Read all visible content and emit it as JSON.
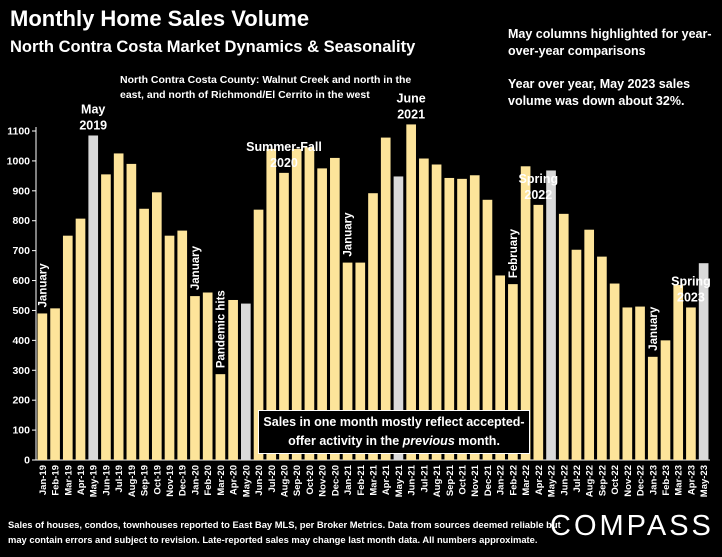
{
  "header": {
    "title": "Monthly Home Sales Volume",
    "subtitle": "North Contra Costa Market Dynamics & Seasonality",
    "region_note": "North Contra Costa County: Walnut Creek and north in the east, and north of Richmond/El Cerrito in the west",
    "highlight_note": "May columns highlighted for year-over-year comparisons",
    "yoy_note": "Year over year, May 2023 sales volume was down about 32%."
  },
  "callout": {
    "line1": "Sales in one month mostly reflect accepted-",
    "line2a": "offer activity in the ",
    "line2b": "previous",
    "line2c": " month."
  },
  "footer": {
    "text": "Sales of houses, condos, townhouses reported to East Bay MLS, per Broker Metrics. Data from sources deemed reliable but may contain errors and subject to revision. Late-reported sales may change last month data. All numbers approximate.",
    "logo": "COMPASS"
  },
  "colors": {
    "bar": "#fde49a",
    "may_bar": "#d9d9d9",
    "background": "#000000",
    "text": "#ffffff"
  },
  "chart_data": {
    "type": "bar",
    "title": "Monthly Home Sales Volume",
    "ylim": [
      0,
      1100
    ],
    "yticks": [
      0,
      100,
      200,
      300,
      400,
      500,
      600,
      700,
      800,
      900,
      1000,
      1100
    ],
    "grid": false,
    "categories": [
      "Jan-19",
      "Feb-19",
      "Mar-19",
      "Apr-19",
      "May-19",
      "Jun-19",
      "Jul-19",
      "Aug-19",
      "Sep-19",
      "Oct-19",
      "Nov-19",
      "Dec-19",
      "Jan-20",
      "Feb-20",
      "Mar-20",
      "Apr-20",
      "May-20",
      "Jun-20",
      "Jul-20",
      "Aug-20",
      "Sep-20",
      "Oct-20",
      "Nov-20",
      "Dec-20",
      "Jan-21",
      "Feb-21",
      "Mar-21",
      "Apr-21",
      "May-21",
      "Jun-21",
      "Jul-21",
      "Aug-21",
      "Sep-21",
      "Oct-21",
      "Nov-21",
      "Dec-21",
      "Jan-22",
      "Feb-22",
      "Mar-22",
      "Apr-22",
      "May-22",
      "Jun-22",
      "Jul-22",
      "Aug-22",
      "Sep-22",
      "Oct-22",
      "Nov-22",
      "Dec-22",
      "Jan-23",
      "Feb-23",
      "Mar-23",
      "Apr-23",
      "May-23"
    ],
    "values": [
      490,
      507,
      750,
      807,
      1085,
      955,
      1025,
      990,
      840,
      895,
      750,
      767,
      548,
      560,
      287,
      535,
      523,
      837,
      1040,
      960,
      1040,
      1045,
      975,
      1010,
      660,
      660,
      892,
      1078,
      948,
      1122,
      1008,
      988,
      943,
      940,
      952,
      870,
      617,
      588,
      982,
      853,
      968,
      823,
      703,
      770,
      680,
      590,
      510,
      513,
      345,
      400,
      585,
      510,
      658
    ],
    "highlighted": [
      "May-19",
      "May-20",
      "May-21",
      "May-22",
      "May-23"
    ],
    "annotations": [
      {
        "at": "Jan-19",
        "text": "January",
        "rotated": true
      },
      {
        "at": "May-19",
        "text": "May 2019",
        "lines": [
          "May",
          "2019"
        ]
      },
      {
        "at": "Jan-20",
        "text": "January",
        "rotated": true
      },
      {
        "at": "Mar-20",
        "text": "Pandemic hits",
        "rotated": true
      },
      {
        "at": "Aug-20",
        "text": "Summer-Fall 2020",
        "lines": [
          "Summer-Fall",
          "2020"
        ]
      },
      {
        "at": "Jan-21",
        "text": "January",
        "rotated": true
      },
      {
        "at": "Jun-21",
        "text": "June 2021",
        "lines": [
          "June",
          "2021"
        ]
      },
      {
        "at": "Feb-22",
        "text": "February",
        "rotated": true
      },
      {
        "at": "Apr-22",
        "text": "Spring 2022",
        "lines": [
          "Spring",
          "2022"
        ]
      },
      {
        "at": "Jan-23",
        "text": "January",
        "rotated": true
      },
      {
        "at": "Apr-23",
        "text": "Spring 2023",
        "lines": [
          "Spring",
          "2023"
        ]
      }
    ]
  }
}
